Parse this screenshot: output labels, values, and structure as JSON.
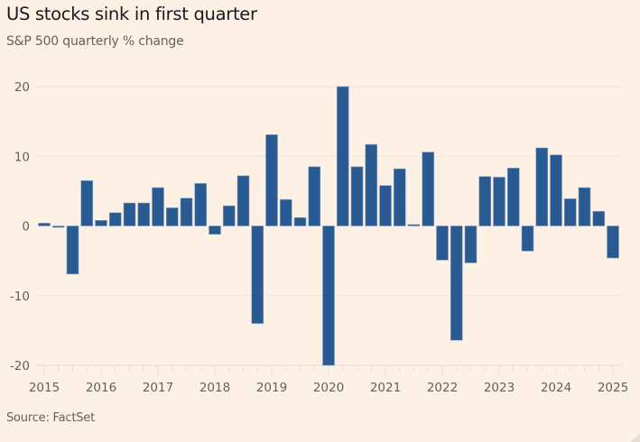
{
  "header": {
    "title": "US stocks sink in first quarter",
    "subtitle": "S&P 500 quarterly % change"
  },
  "footer": {
    "source": "Source: FactSet"
  },
  "colors": {
    "background": "#fdf1e6",
    "bar": "#2a5a92",
    "grid": "#f2e4d8",
    "text": "#66605c"
  },
  "chart_data": {
    "type": "bar",
    "title": "US stocks sink in first quarter",
    "subtitle": "S&P 500 quarterly % change",
    "xlabel": "",
    "ylabel": "",
    "ylim": [
      -20,
      20
    ],
    "yticks": [
      20,
      10,
      0,
      -10,
      -20
    ],
    "xtick_labels": [
      "2015",
      "2016",
      "2017",
      "2018",
      "2019",
      "2020",
      "2021",
      "2022",
      "2023",
      "2024",
      "2025"
    ],
    "grid": true,
    "legend": "none",
    "source": "FactSet",
    "categories": [
      "2015 Q1",
      "2015 Q2",
      "2015 Q3",
      "2015 Q4",
      "2016 Q1",
      "2016 Q2",
      "2016 Q3",
      "2016 Q4",
      "2017 Q1",
      "2017 Q2",
      "2017 Q3",
      "2017 Q4",
      "2018 Q1",
      "2018 Q2",
      "2018 Q3",
      "2018 Q4",
      "2019 Q1",
      "2019 Q2",
      "2019 Q3",
      "2019 Q4",
      "2020 Q1",
      "2020 Q2",
      "2020 Q3",
      "2020 Q4",
      "2021 Q1",
      "2021 Q2",
      "2021 Q3",
      "2021 Q4",
      "2022 Q1",
      "2022 Q2",
      "2022 Q3",
      "2022 Q4",
      "2023 Q1",
      "2023 Q2",
      "2023 Q3",
      "2023 Q4",
      "2024 Q1",
      "2024 Q2",
      "2024 Q3",
      "2024 Q4",
      "2025 Q1"
    ],
    "values": [
      0.4,
      -0.2,
      -6.9,
      6.5,
      0.8,
      1.9,
      3.3,
      3.3,
      5.5,
      2.6,
      4.0,
      6.1,
      -1.2,
      2.9,
      7.2,
      -14.0,
      13.1,
      3.8,
      1.2,
      8.5,
      -20.0,
      20.0,
      8.5,
      11.7,
      5.8,
      8.2,
      0.2,
      10.6,
      -4.9,
      -16.4,
      -5.3,
      7.1,
      7.0,
      8.3,
      -3.6,
      11.2,
      10.2,
      3.9,
      5.5,
      2.1,
      -4.6
    ]
  }
}
